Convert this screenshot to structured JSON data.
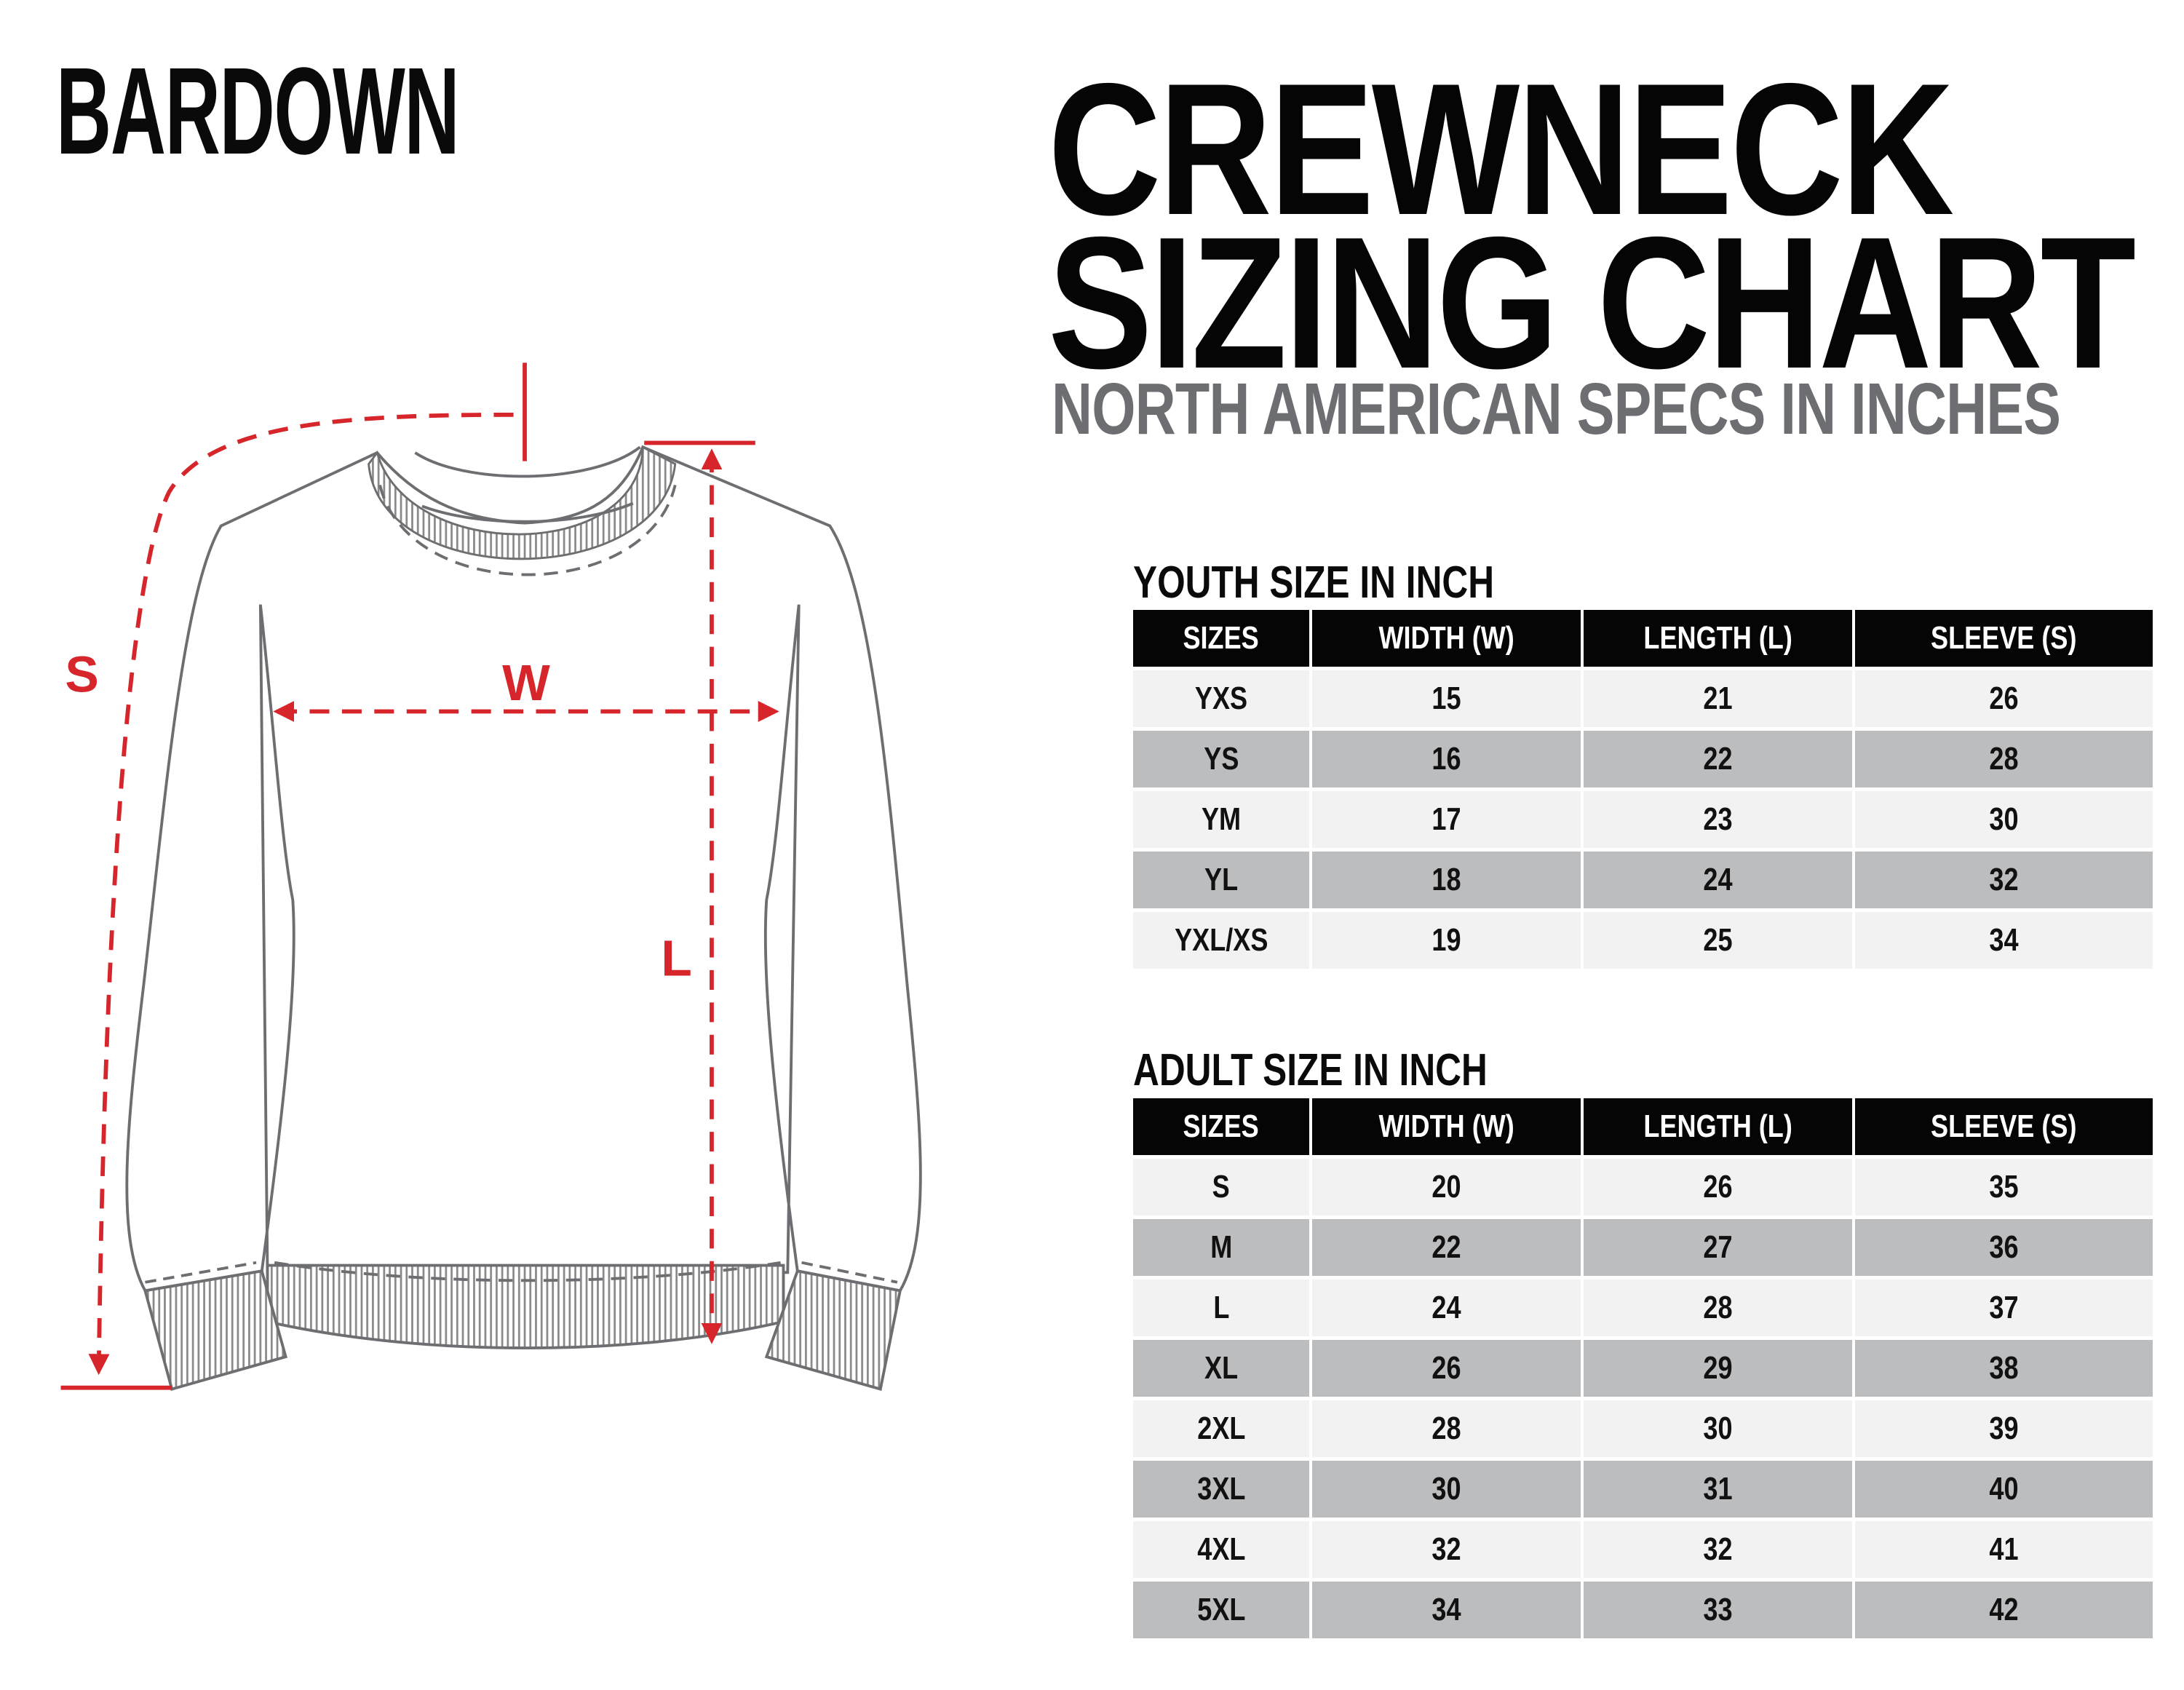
{
  "brand": "BARDOWN",
  "title_line1": "CREWNECK",
  "title_line2": "SIZING CHART",
  "subtitle": "NORTH AMERICAN SPECS IN INCHES",
  "diagram": {
    "labels": {
      "sleeve": "S",
      "width": "W",
      "length": "L"
    },
    "accent_color": "#d7262b",
    "outline_color": "#6d6e71"
  },
  "headers": [
    "SIZES",
    "WIDTH (W)",
    "LENGTH (L)",
    "SLEEVE (S)"
  ],
  "youth": {
    "title": "YOUTH SIZE IN INCH",
    "rows": [
      [
        "YXS",
        "15",
        "21",
        "26"
      ],
      [
        "YS",
        "16",
        "22",
        "28"
      ],
      [
        "YM",
        "17",
        "23",
        "30"
      ],
      [
        "YL",
        "18",
        "24",
        "32"
      ],
      [
        "YXL/XS",
        "19",
        "25",
        "34"
      ]
    ]
  },
  "adult": {
    "title": "ADULT SIZE IN INCH",
    "rows": [
      [
        "S",
        "20",
        "26",
        "35"
      ],
      [
        "M",
        "22",
        "27",
        "36"
      ],
      [
        "L",
        "24",
        "28",
        "37"
      ],
      [
        "XL",
        "26",
        "29",
        "38"
      ],
      [
        "2XL",
        "28",
        "30",
        "39"
      ],
      [
        "3XL",
        "30",
        "31",
        "40"
      ],
      [
        "4XL",
        "32",
        "32",
        "41"
      ],
      [
        "5XL",
        "34",
        "33",
        "42"
      ]
    ]
  },
  "colors": {
    "row_light": "#f2f2f2",
    "row_dark": "#bcbdbf",
    "header": "#050505"
  }
}
